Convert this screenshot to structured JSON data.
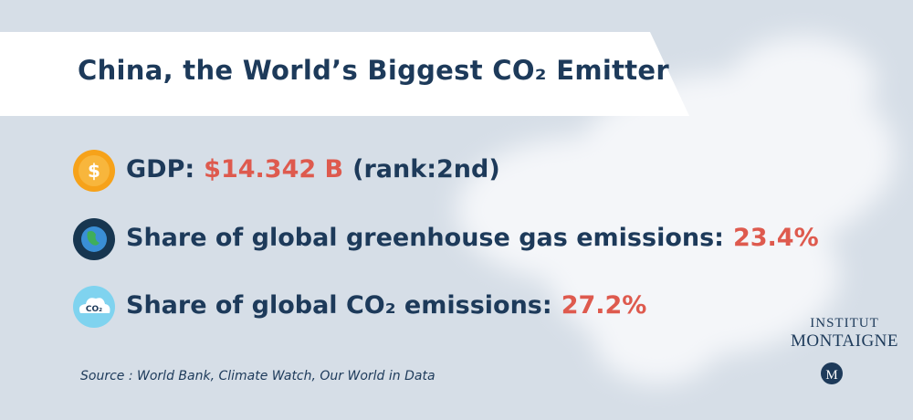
{
  "header": {
    "title": "China, the World’s Biggest CO₂ Emitter"
  },
  "items": [
    {
      "icon": "$",
      "label": "GDP:",
      "value": "$14.342 B",
      "note": "(rank:2nd)"
    },
    {
      "label": "Share of global greenhouse gas emissions:",
      "value": "23.4%"
    },
    {
      "icon": "CO₂",
      "label": "Share of global CO₂ emissions:",
      "value": "27.2%"
    }
  ],
  "source": "Source : World Bank, Climate Watch, Our World in Data",
  "logo": {
    "line1": "INSTITUT",
    "line2": "MONTAIGNE",
    "mark": "M"
  }
}
